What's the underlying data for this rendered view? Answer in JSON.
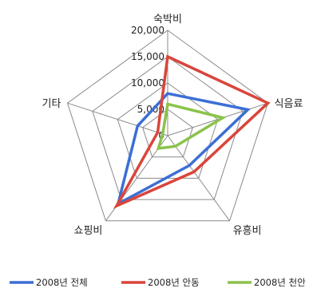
{
  "chart_data": {
    "type": "radar",
    "title": "",
    "axes": [
      "숙박비",
      "식음료",
      "유흥비",
      "쇼핑비",
      "기타"
    ],
    "r_ticks": [
      "20,000",
      "15,000",
      "10,000",
      "5,000",
      "0"
    ],
    "r_range": [
      0,
      20000
    ],
    "grid": true,
    "legend_position": "bottom",
    "series": [
      {
        "name": "2008년 전체",
        "color": "#3c6fd4",
        "values": [
          8000,
          16000,
          7000,
          16000,
          6000
        ]
      },
      {
        "name": "2008년 안동",
        "color": "#d9453b",
        "values": [
          15000,
          20000,
          8500,
          16500,
          2000
        ]
      },
      {
        "name": "2008년 천안",
        "color": "#8bc34a",
        "values": [
          6000,
          11000,
          2500,
          3000,
          1000
        ]
      }
    ]
  }
}
